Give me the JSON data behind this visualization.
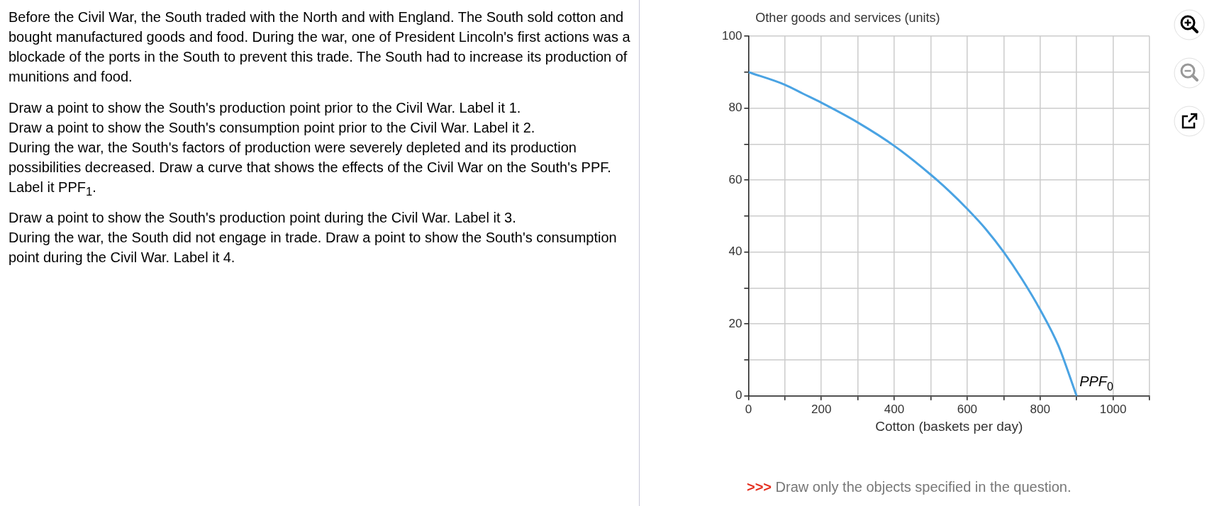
{
  "chart_data": {
    "type": "line",
    "xlabel": "Cotton (baskets per day)",
    "ylabel": "Other goods and services (units)",
    "x": [
      0,
      100,
      150,
      200,
      300,
      400,
      500,
      550,
      600,
      650,
      700,
      750,
      800,
      850,
      900
    ],
    "series": [
      {
        "color": "#4aa3e3",
        "values": [
          90,
          86.5,
          84,
          81.5,
          76,
          69.5,
          61.5,
          57,
          52,
          46.5,
          40,
          32.5,
          24,
          14,
          0
        ]
      }
    ],
    "xlim": [
      0,
      1100
    ],
    "xticks": [
      0,
      {
        "value": 100,
        "label": null
      },
      200,
      {
        "value": 300,
        "label": null
      },
      400,
      {
        "value": 500,
        "label": null
      },
      600,
      {
        "value": 700,
        "label": null
      },
      800,
      {
        "value": 900,
        "label": null
      },
      1000,
      {
        "value": 1100,
        "label": null
      }
    ],
    "ylim": [
      0,
      100
    ],
    "yticks": [
      0,
      {
        "value": 10,
        "label": null
      },
      20,
      {
        "value": 30,
        "label": null
      },
      40,
      {
        "value": 50,
        "label": null
      },
      60,
      {
        "value": 70,
        "label": null
      },
      80,
      {
        "value": 90,
        "label": null
      },
      100
    ],
    "grid": true,
    "legend": false,
    "marker": "none",
    "line_style": "solid",
    "annotations": [
      {
        "text": "PPF$_{0}$",
        "x": 900,
        "y": 0
      },
      "Before the Civil War, the South traded with the North and with England. The South sold cotton and bought manufactured goods and food. During the war, one of President Lincoln's first actions was a blockade of the ports in the South to prevent this trade. The South had to increase its production of munitions and food.",
      "Draw a point to show the South's production point prior to the Civil War. Label it 1.",
      "Draw a point to show the South's consumption point prior to the Civil War. Label it 2.",
      "During the war, the South's factors of production were severely depleted and its production possibilities decreased. Draw a curve that shows the effects of the Civil War on the South's PPF. Label it PPF$_{1}$.",
      "Draw a point to show the South's production point during the Civil War. Label it 3.",
      "During the war, the South did not engage in trade. Draw a point to show the South's consumption point during the Civil War. Label it 4.",
      ">>> Draw only the objects specified in the question."
    ]
  }
}
